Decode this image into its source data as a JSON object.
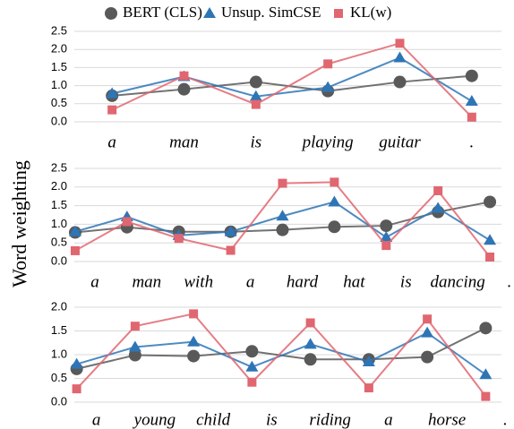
{
  "ylabel": "Word weighting",
  "chart_data": [
    {
      "type": "line",
      "categories": [
        "a",
        "man",
        "is",
        "playing",
        "guitar",
        "."
      ],
      "series": [
        {
          "name": "BERT (CLS)",
          "color": "#595959",
          "marker": "circle",
          "values": [
            0.72,
            0.9,
            1.1,
            0.85,
            1.1,
            1.27
          ]
        },
        {
          "name": "Unsup. SimCSE",
          "color": "#2e75b6",
          "marker": "triangle",
          "values": [
            0.78,
            1.25,
            0.7,
            0.95,
            1.77,
            0.57
          ]
        },
        {
          "name": "KL(w)",
          "color": "#e06670",
          "marker": "square",
          "values": [
            0.33,
            1.27,
            0.48,
            1.6,
            2.17,
            0.13
          ]
        }
      ],
      "ylim": [
        0,
        2.5
      ],
      "yticks": [
        {
          "value": 0,
          "label": "0.0"
        },
        {
          "value": 0.5,
          "label": "0.5"
        },
        {
          "value": 1,
          "label": "1.0"
        },
        {
          "value": 1.5,
          "label": "1.5"
        },
        {
          "value": 2,
          "label": "2.0"
        },
        {
          "value": 2.5,
          "label": "2.5"
        }
      ],
      "grid": true
    },
    {
      "type": "line",
      "categories": [
        "a",
        "man",
        "with",
        "a",
        "hard",
        "hat",
        "is",
        "dancing",
        "."
      ],
      "series": [
        {
          "name": "BERT (CLS)",
          "color": "#595959",
          "marker": "circle",
          "values": [
            0.78,
            0.92,
            0.8,
            0.8,
            0.85,
            0.93,
            0.96,
            1.33,
            1.6
          ]
        },
        {
          "name": "Unsup. SimCSE",
          "color": "#2e75b6",
          "marker": "triangle",
          "values": [
            0.8,
            1.2,
            0.7,
            0.8,
            1.22,
            1.6,
            0.65,
            1.43,
            0.57
          ]
        },
        {
          "name": "KL(w)",
          "color": "#e06670",
          "marker": "square",
          "values": [
            0.29,
            1.07,
            0.62,
            0.3,
            2.1,
            2.13,
            0.43,
            1.9,
            0.12
          ]
        }
      ],
      "ylim": [
        0,
        2.5
      ],
      "yticks": [
        {
          "value": 0,
          "label": "0.0"
        },
        {
          "value": 0.5,
          "label": "0.5"
        },
        {
          "value": 1,
          "label": "1.0"
        },
        {
          "value": 1.5,
          "label": "1.5"
        },
        {
          "value": 2,
          "label": "2.0"
        },
        {
          "value": 2.5,
          "label": "2.5"
        }
      ],
      "grid": true
    },
    {
      "type": "line",
      "categories": [
        "a",
        "young",
        "child",
        "is",
        "riding",
        "a",
        "horse",
        "."
      ],
      "series": [
        {
          "name": "BERT (CLS)",
          "color": "#595959",
          "marker": "circle",
          "values": [
            0.7,
            0.99,
            0.97,
            1.07,
            0.9,
            0.9,
            0.95,
            1.56
          ]
        },
        {
          "name": "Unsup. SimCSE",
          "color": "#2e75b6",
          "marker": "triangle",
          "values": [
            0.8,
            1.16,
            1.27,
            0.74,
            1.22,
            0.85,
            1.46,
            0.58
          ]
        },
        {
          "name": "KL(w)",
          "color": "#e06670",
          "marker": "square",
          "values": [
            0.28,
            1.6,
            1.86,
            0.42,
            1.67,
            0.3,
            1.75,
            0.12
          ]
        }
      ],
      "ylim": [
        0,
        2
      ],
      "yticks": [
        {
          "value": 0,
          "label": "0.0"
        },
        {
          "value": 0.5,
          "label": "0.5"
        },
        {
          "value": 1,
          "label": "1.0"
        },
        {
          "value": 1.5,
          "label": "1.5"
        },
        {
          "value": 2,
          "label": "2.0"
        }
      ],
      "grid": true
    }
  ]
}
